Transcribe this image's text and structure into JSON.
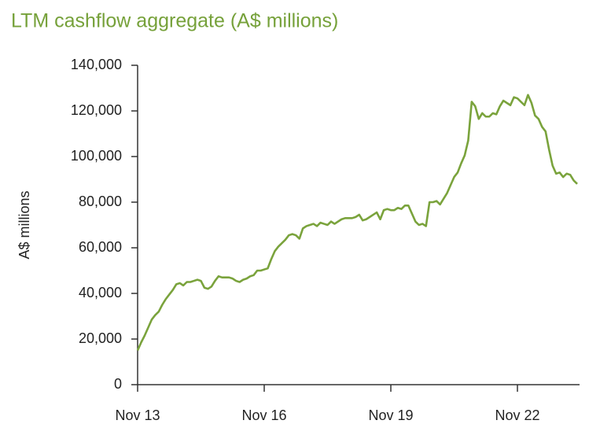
{
  "chart_data": {
    "type": "line",
    "title": "LTM cashflow aggregate (A$ millions)",
    "y_label": "A$ millions",
    "categories": [
      "Nov 13",
      null,
      null,
      null,
      null,
      null,
      null,
      null,
      null,
      null,
      null,
      null,
      null,
      null,
      null,
      null,
      null,
      null,
      null,
      null,
      null,
      null,
      null,
      null,
      null,
      null,
      null,
      null,
      null,
      null,
      null,
      null,
      null,
      null,
      null,
      null,
      "Nov 16",
      null,
      null,
      null,
      null,
      null,
      null,
      null,
      null,
      null,
      null,
      null,
      null,
      null,
      null,
      null,
      null,
      null,
      null,
      null,
      null,
      null,
      null,
      null,
      null,
      null,
      null,
      null,
      null,
      null,
      null,
      null,
      null,
      null,
      null,
      null,
      "Nov 19",
      null,
      null,
      null,
      null,
      null,
      null,
      null,
      null,
      null,
      null,
      null,
      null,
      null,
      null,
      null,
      null,
      null,
      null,
      null,
      null,
      null,
      null,
      null,
      null,
      null,
      null,
      null,
      null,
      null,
      null,
      null,
      null,
      null,
      null,
      null,
      "Nov 22",
      null,
      null,
      null,
      null,
      null,
      null,
      null,
      null,
      null,
      null,
      null,
      null,
      null,
      null,
      null,
      null,
      null
    ],
    "series": [
      {
        "name": "LTM cashflow aggregate",
        "color": "#7aa33c",
        "values": [
          15000,
          18500,
          21500,
          25000,
          28500,
          30500,
          32000,
          35000,
          37500,
          39500,
          41500,
          44000,
          44500,
          43500,
          45000,
          45000,
          45500,
          46000,
          45500,
          42500,
          42000,
          43000,
          45500,
          47500,
          47000,
          47000,
          47000,
          46500,
          45500,
          45000,
          46000,
          46500,
          47500,
          48000,
          50000,
          50000,
          50500,
          51000,
          55000,
          58500,
          60500,
          62000,
          63500,
          65500,
          66000,
          65500,
          64000,
          68500,
          69500,
          70000,
          70500,
          69500,
          71000,
          70500,
          70000,
          71500,
          70500,
          71500,
          72500,
          73000,
          73000,
          73000,
          73500,
          74500,
          72000,
          72500,
          73500,
          74500,
          75500,
          72500,
          76500,
          77000,
          76500,
          76500,
          77500,
          77000,
          78500,
          78500,
          75000,
          71500,
          70000,
          70500,
          69500,
          80000,
          80000,
          80500,
          79000,
          81500,
          84000,
          87500,
          91000,
          93000,
          97000,
          100500,
          107000,
          124000,
          122000,
          116500,
          119000,
          117500,
          117500,
          119000,
          118500,
          122000,
          124500,
          123500,
          122500,
          126000,
          125500,
          124000,
          122500,
          127000,
          123500,
          118000,
          116500,
          113000,
          111000,
          103000,
          96000,
          92500,
          93000,
          91000,
          92500,
          92000,
          89500,
          88000
        ]
      }
    ],
    "ylim": [
      0,
      140000
    ],
    "yticks": [
      0,
      {
        "value": 20000,
        "label": "20,000"
      },
      {
        "value": 40000,
        "label": "40,000"
      },
      {
        "value": 60000,
        "label": "60,000"
      },
      {
        "value": 80000,
        "label": "80,000"
      },
      {
        "value": 100000,
        "label": "100,000"
      },
      {
        "value": 120000,
        "label": "120,000"
      },
      {
        "value": 140000,
        "label": "140,000"
      }
    ],
    "grid": false
  }
}
